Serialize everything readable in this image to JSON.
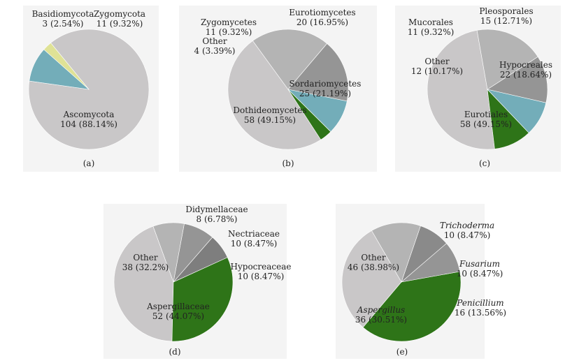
{
  "chart_data": [
    {
      "type": "pie",
      "panel_label": "(a)",
      "slices": [
        {
          "name": "Ascomycota",
          "value": 104,
          "pct": "88.14%",
          "color": "#c9c7c8",
          "italic": false
        },
        {
          "name": "Basidiomycota",
          "value": 3,
          "pct": "2.54%",
          "color": "#dfe296",
          "italic": false
        },
        {
          "name": "Zygomycota",
          "value": 11,
          "pct": "9.32%",
          "color": "#73adb9",
          "italic": false
        }
      ]
    },
    {
      "type": "pie",
      "panel_label": "(b)",
      "slices": [
        {
          "name": "Dothideomycetes",
          "value": 58,
          "pct": "49.15%",
          "color": "#c9c7c8",
          "italic": false
        },
        {
          "name": "Other",
          "value": 4,
          "pct": "3.39%",
          "color": "#2e7418",
          "italic": false
        },
        {
          "name": "Zygomycetes",
          "value": 11,
          "pct": "9.32%",
          "color": "#73adb9",
          "italic": false
        },
        {
          "name": "Eurotiomycetes",
          "value": 20,
          "pct": "16.95%",
          "color": "#959595",
          "italic": false
        },
        {
          "name": "Sordariomycetes",
          "value": 25,
          "pct": "21.19%",
          "color": "#b4b4b4",
          "italic": false
        }
      ]
    },
    {
      "type": "pie",
      "panel_label": "(c)",
      "slices": [
        {
          "name": "Eurotiales",
          "value": 58,
          "pct": "49.15%",
          "color": "#c9c7c8",
          "italic": false
        },
        {
          "name": "Other",
          "value": 12,
          "pct": "10.17%",
          "color": "#2e7418",
          "italic": false
        },
        {
          "name": "Mucorales",
          "value": 11,
          "pct": "9.32%",
          "color": "#73adb9",
          "italic": false
        },
        {
          "name": "Pleosporales",
          "value": 15,
          "pct": "12.71%",
          "color": "#959595",
          "italic": false
        },
        {
          "name": "Hypocreales",
          "value": 22,
          "pct": "18.64%",
          "color": "#b4b4b4",
          "italic": false
        }
      ]
    },
    {
      "type": "pie",
      "panel_label": "(d)",
      "slices": [
        {
          "name": "Aspergillaceae",
          "value": 52,
          "pct": "44.07%",
          "color": "#c9c7c8",
          "italic": false
        },
        {
          "name": "Other",
          "value": 38,
          "pct": "32.2%",
          "color": "#2e7418",
          "italic": false
        },
        {
          "name": "Didymellaceae",
          "value": 8,
          "pct": "6.78%",
          "color": "#7e7e7e",
          "italic": false
        },
        {
          "name": "Nectriaceae",
          "value": 10,
          "pct": "8.47%",
          "color": "#959595",
          "italic": false
        },
        {
          "name": "Hypocreaceae",
          "value": 10,
          "pct": "8.47%",
          "color": "#b4b4b4",
          "italic": false
        }
      ]
    },
    {
      "type": "pie",
      "panel_label": "(e)",
      "slices": [
        {
          "name": "Aspergillus",
          "value": 36,
          "pct": "30.51%",
          "color": "#c9c7c8",
          "italic": true
        },
        {
          "name": "Other",
          "value": 46,
          "pct": "38.98%",
          "color": "#2e7418",
          "italic": false
        },
        {
          "name": "Trichoderma",
          "value": 10,
          "pct": "8.47%",
          "color": "#959595",
          "italic": true
        },
        {
          "name": "Fusarium",
          "value": 10,
          "pct": "8.47%",
          "color": "#8a8a8a",
          "italic": true
        },
        {
          "name": "Penicillium",
          "value": 16,
          "pct": "13.56%",
          "color": "#b4b4b4",
          "italic": true
        }
      ]
    }
  ]
}
